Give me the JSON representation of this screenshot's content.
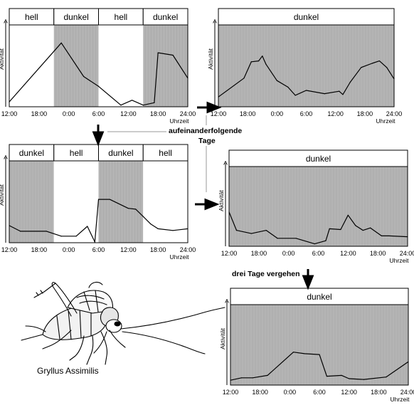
{
  "common": {
    "y_axis_label": "Aktivität",
    "x_unit_label": "Uhrzeit",
    "phase_light": "hell",
    "phase_dark": "dunkel"
  },
  "annotations": {
    "consecutive_days_line1": "aufeinanderfolgende",
    "consecutive_days_line2": "Tage",
    "three_days_pass": "drei Tage vergehen"
  },
  "insect_caption": "Gryllus Assimilis",
  "colors": {
    "dark_phase": "#b4b4b4",
    "light_phase": "#ffffff",
    "line": "#000000"
  },
  "chart_data": [
    {
      "id": "p1",
      "type": "line",
      "header_phases": [
        "hell",
        "dunkel",
        "hell",
        "dunkel"
      ],
      "x_ticks": [
        "12:00",
        "18:00",
        "0:00",
        "6:00",
        "12:00",
        "18:00",
        "24:00"
      ],
      "x_unit": "Uhrzeit",
      "xlim": [
        0,
        48
      ],
      "x": [
        0,
        14,
        20,
        24,
        30,
        33,
        36,
        39,
        40,
        44,
        48
      ],
      "values": [
        0.06,
        0.78,
        0.37,
        0.25,
        0.02,
        0.08,
        0.02,
        0.05,
        0.66,
        0.63,
        0.35
      ]
    },
    {
      "id": "p2",
      "type": "line",
      "header_phases": [
        "dunkel"
      ],
      "x_ticks": [
        "12:00",
        "18:00",
        "0:00",
        "6:00",
        "12:00",
        "18:00",
        "24:00"
      ],
      "x_unit": "Uhrzeit",
      "xlim": [
        0,
        48
      ],
      "x": [
        0,
        7,
        9,
        11,
        12,
        13,
        16,
        19,
        21,
        24,
        29,
        33,
        34,
        36,
        39,
        42,
        44,
        46,
        48
      ],
      "values": [
        0.12,
        0.35,
        0.55,
        0.56,
        0.62,
        0.52,
        0.32,
        0.24,
        0.14,
        0.2,
        0.16,
        0.19,
        0.15,
        0.3,
        0.48,
        0.53,
        0.56,
        0.48,
        0.34
      ]
    },
    {
      "id": "p3",
      "type": "line",
      "header_phases": [
        "dunkel",
        "hell",
        "dunkel",
        "hell"
      ],
      "x_ticks": [
        "12:00",
        "18:00",
        "0:00",
        "6:00",
        "12:00",
        "18:00",
        "24:00"
      ],
      "x_unit": "Uhrzeit",
      "xlim": [
        0,
        48
      ],
      "x": [
        0,
        3,
        10,
        14,
        18,
        21,
        23,
        24,
        27,
        32,
        34,
        36,
        38,
        40,
        44,
        48
      ],
      "values": [
        0.21,
        0.14,
        0.14,
        0.08,
        0.08,
        0.2,
        0.01,
        0.53,
        0.53,
        0.42,
        0.41,
        0.32,
        0.23,
        0.17,
        0.15,
        0.17
      ]
    },
    {
      "id": "p4",
      "type": "line",
      "header_phases": [
        "dunkel"
      ],
      "x_ticks": [
        "12:00",
        "18:00",
        "0:00",
        "6:00",
        "12:00",
        "18:00",
        "24:00"
      ],
      "x_unit": "Uhrzeit",
      "xlim": [
        0,
        48
      ],
      "x": [
        0,
        2,
        6,
        10,
        13,
        18,
        23,
        26,
        27,
        30,
        32,
        34,
        36,
        38,
        41,
        43,
        48
      ],
      "values": [
        0.43,
        0.2,
        0.16,
        0.2,
        0.1,
        0.1,
        0.03,
        0.07,
        0.22,
        0.21,
        0.39,
        0.26,
        0.2,
        0.23,
        0.13,
        0.13,
        0.12
      ]
    },
    {
      "id": "p5",
      "type": "line",
      "header_phases": [
        "dunkel"
      ],
      "x_ticks": [
        "12:00",
        "18:00",
        "0:00",
        "6:00",
        "12:00",
        "18:00",
        "24:00"
      ],
      "x_unit": "Uhrzeit",
      "xlim": [
        0,
        48
      ],
      "x": [
        0,
        3,
        6,
        10,
        17,
        20,
        24,
        26,
        30,
        32,
        36,
        42,
        48
      ],
      "values": [
        0.06,
        0.09,
        0.09,
        0.12,
        0.41,
        0.39,
        0.38,
        0.11,
        0.12,
        0.08,
        0.07,
        0.1,
        0.29
      ]
    }
  ]
}
